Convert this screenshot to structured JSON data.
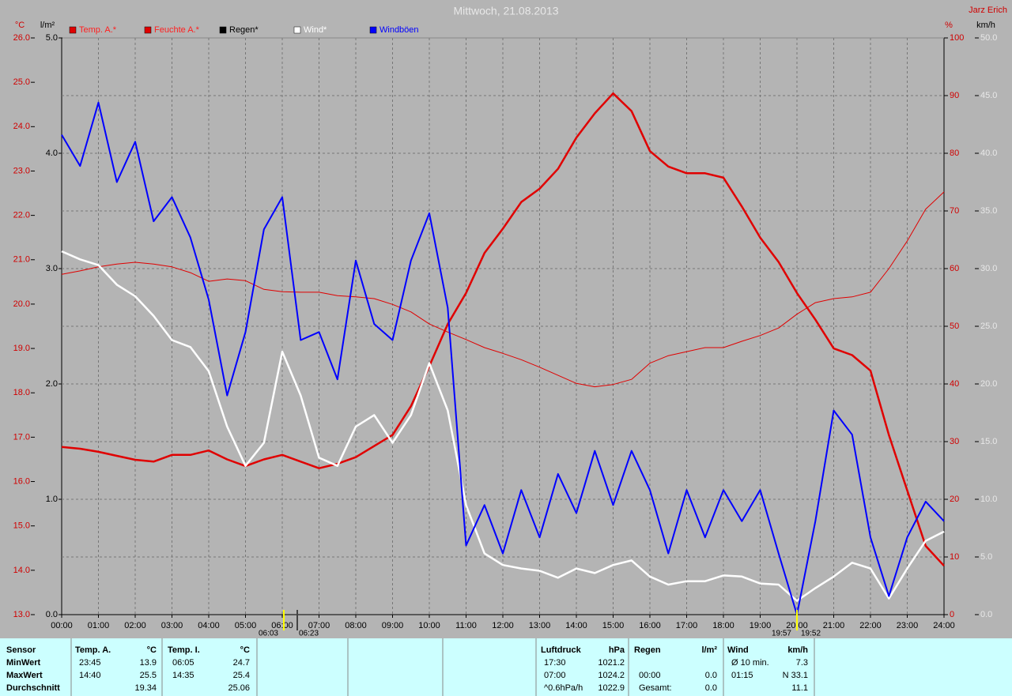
{
  "chart_data": {
    "type": "line",
    "title": "Mittwoch, 21.08.2013",
    "author": "Jarz Erich",
    "y_label": "°C",
    "y3_label": "l/m²",
    "y2_label": "%",
    "y4_label": "km/h",
    "grid": true,
    "xlim": [
      0,
      24
    ],
    "xticks": [
      {
        "value": 0,
        "label": "00:00"
      },
      {
        "value": 1,
        "label": "01:00"
      },
      {
        "value": 2,
        "label": "02:00"
      },
      {
        "value": 3,
        "label": "03:00"
      },
      {
        "value": 4,
        "label": "04:00"
      },
      {
        "value": 5,
        "label": "05:00"
      },
      {
        "value": 6,
        "label": "06:00"
      },
      {
        "value": 7,
        "label": "07:00"
      },
      {
        "value": 8,
        "label": "08:00"
      },
      {
        "value": 9,
        "label": "09:00"
      },
      {
        "value": 10,
        "label": "10:00"
      },
      {
        "value": 11,
        "label": "11:00"
      },
      {
        "value": 12,
        "label": "12:00"
      },
      {
        "value": 13,
        "label": "13:00"
      },
      {
        "value": 14,
        "label": "14:00"
      },
      {
        "value": 15,
        "label": "15:00"
      },
      {
        "value": 16,
        "label": "16:00"
      },
      {
        "value": 17,
        "label": "17:00"
      },
      {
        "value": 18,
        "label": "18:00"
      },
      {
        "value": 19,
        "label": "19:00"
      },
      {
        "value": 20,
        "label": "20:00"
      },
      {
        "value": 21,
        "label": "21:00"
      },
      {
        "value": 22,
        "label": "22:00"
      },
      {
        "value": 23,
        "label": "23:00"
      },
      {
        "value": 24,
        "label": "24:00"
      }
    ],
    "ylim": [
      13,
      26
    ],
    "yticks": [
      {
        "value": 13,
        "label": "13.0"
      },
      {
        "value": 14,
        "label": "14.0"
      },
      {
        "value": 15,
        "label": "15.0"
      },
      {
        "value": 16,
        "label": "16.0"
      },
      {
        "value": 17,
        "label": "17.0"
      },
      {
        "value": 18,
        "label": "18.0"
      },
      {
        "value": 19,
        "label": "19.0"
      },
      {
        "value": 20,
        "label": "20.0"
      },
      {
        "value": 21,
        "label": "21.0"
      },
      {
        "value": 22,
        "label": "22.0"
      },
      {
        "value": 23,
        "label": "23.0"
      },
      {
        "value": 24,
        "label": "24.0"
      },
      {
        "value": 25,
        "label": "25.0"
      },
      {
        "value": 26,
        "label": "26.0"
      }
    ],
    "y3lim": [
      0,
      5
    ],
    "y3ticks": [
      {
        "value": 0,
        "label": "0.0"
      },
      {
        "value": 1,
        "label": "1.0"
      },
      {
        "value": 2,
        "label": "2.0"
      },
      {
        "value": 3,
        "label": "3.0"
      },
      {
        "value": 4,
        "label": "4.0"
      },
      {
        "value": 5,
        "label": "5.0"
      }
    ],
    "y2lim": [
      0,
      100
    ],
    "y2ticks": [
      0,
      10,
      20,
      30,
      40,
      50,
      60,
      70,
      80,
      90,
      100
    ],
    "y4lim": [
      0,
      50
    ],
    "y4ticks": [
      {
        "value": 0,
        "label": "0.0"
      },
      {
        "value": 5,
        "label": "5.0"
      },
      {
        "value": 10,
        "label": "10.0"
      },
      {
        "value": 15,
        "label": "15.0"
      },
      {
        "value": 20,
        "label": "20.0"
      },
      {
        "value": 25,
        "label": "25.0"
      },
      {
        "value": 30,
        "label": "30.0"
      },
      {
        "value": 35,
        "label": "35.0"
      },
      {
        "value": 40,
        "label": "40.0"
      },
      {
        "value": 45,
        "label": "45.0"
      },
      {
        "value": 50,
        "label": "50.0"
      }
    ],
    "x": [
      0,
      0.5,
      1,
      1.5,
      2,
      2.5,
      3,
      3.5,
      4,
      4.5,
      5,
      5.5,
      6,
      6.5,
      7,
      7.5,
      8,
      8.5,
      9,
      9.5,
      10,
      10.5,
      11,
      11.5,
      12,
      12.5,
      13,
      13.5,
      14,
      14.5,
      15,
      15.5,
      16,
      16.5,
      17,
      17.5,
      18,
      18.5,
      19,
      19.5,
      20,
      20.5,
      21,
      21.5,
      22,
      22.5,
      23,
      23.5,
      24
    ],
    "series": [
      {
        "name": "Temp. A.*",
        "color": "#e00000",
        "axis": "y",
        "width": 2.5,
        "values": [
          16.78,
          16.74,
          16.67,
          16.58,
          16.49,
          16.45,
          16.6,
          16.6,
          16.7,
          16.5,
          16.35,
          16.5,
          16.6,
          16.45,
          16.3,
          16.4,
          16.55,
          16.8,
          17.05,
          17.7,
          18.6,
          19.55,
          20.25,
          21.15,
          21.7,
          22.3,
          22.6,
          23.05,
          23.75,
          24.3,
          24.75,
          24.35,
          23.45,
          23.1,
          22.95,
          22.95,
          22.85,
          22.2,
          21.5,
          20.95,
          20.25,
          19.65,
          19.0,
          18.85,
          18.5,
          17.05,
          15.8,
          14.55,
          14.1
        ]
      },
      {
        "name": "Feuchte A.*",
        "color": "#e00000",
        "axis": "y2",
        "width": 1,
        "values": [
          59.0,
          59.6,
          60.3,
          60.8,
          61.1,
          60.8,
          60.3,
          59.3,
          57.8,
          58.2,
          57.9,
          56.4,
          56.0,
          55.9,
          55.9,
          55.3,
          55.1,
          54.8,
          53.8,
          52.5,
          50.4,
          49.0,
          47.7,
          46.3,
          45.3,
          44.2,
          42.9,
          41.5,
          40.1,
          39.5,
          39.9,
          40.8,
          43.6,
          44.9,
          45.6,
          46.3,
          46.3,
          47.4,
          48.4,
          49.7,
          52.1,
          54.1,
          54.8,
          55.1,
          55.9,
          60.0,
          64.8,
          70.3,
          73.3
        ]
      },
      {
        "name": "Regen*",
        "color": "#000000",
        "axis": "y3",
        "width": 1,
        "values": [
          0,
          0,
          0,
          0,
          0,
          0,
          0,
          0,
          0,
          0,
          0,
          0,
          0,
          0,
          0,
          0,
          0,
          0,
          0,
          0,
          0,
          0,
          0,
          0,
          0,
          0,
          0,
          0,
          0,
          0,
          0,
          0,
          0,
          0,
          0,
          0,
          0,
          0,
          0,
          0,
          0,
          0,
          0,
          0,
          0,
          0,
          0,
          0,
          0
        ]
      },
      {
        "name": "Wind*",
        "color": "#ffffff",
        "axis": "y4",
        "width": 2.5,
        "values": [
          31.5,
          30.8,
          30.3,
          28.6,
          27.6,
          25.9,
          23.8,
          23.2,
          21.1,
          16.3,
          12.9,
          14.9,
          22.8,
          19.0,
          13.6,
          12.9,
          16.3,
          17.3,
          14.9,
          17.3,
          21.8,
          17.7,
          9.5,
          5.3,
          4.3,
          4.0,
          3.8,
          3.2,
          4.0,
          3.6,
          4.3,
          4.7,
          3.3,
          2.6,
          2.9,
          2.9,
          3.4,
          3.3,
          2.7,
          2.6,
          1.2,
          2.3,
          3.3,
          4.5,
          4.0,
          1.4,
          4.0,
          6.4,
          7.2
        ]
      },
      {
        "name": "Windböen",
        "color": "#0000ff",
        "axis": "y4",
        "width": 2,
        "values": [
          41.6,
          38.9,
          44.4,
          37.5,
          41.0,
          34.1,
          36.2,
          32.7,
          27.3,
          19.0,
          24.5,
          33.4,
          36.2,
          23.8,
          24.5,
          20.4,
          30.7,
          25.2,
          23.8,
          30.7,
          34.8,
          26.6,
          6.0,
          9.5,
          5.3,
          10.8,
          6.7,
          12.2,
          8.8,
          14.2,
          9.5,
          14.2,
          10.8,
          5.3,
          10.8,
          6.7,
          10.8,
          8.1,
          10.8,
          5.3,
          0,
          8.1,
          17.7,
          15.6,
          6.7,
          1.6,
          6.7,
          9.8,
          8.1
        ]
      }
    ],
    "annotations": [
      {
        "label": "06:03"
      },
      {
        "label": "06:23"
      },
      {
        "label": "19:57"
      },
      {
        "label": "19:52"
      }
    ]
  },
  "table": {
    "row_labels": [
      "Sensor",
      "MinWert",
      "MaxWert",
      "Durchschnitt"
    ],
    "blocks": [
      {
        "header": [
          "Temp. A.",
          "°C"
        ],
        "rows": [
          [
            "23:45",
            "13.9"
          ],
          [
            "14:40",
            "25.5"
          ],
          [
            null,
            "19.34"
          ]
        ]
      },
      {
        "header": [
          "Temp. I.",
          "°C"
        ],
        "rows": [
          [
            "06:05",
            "24.7"
          ],
          [
            "14:35",
            "25.4"
          ],
          [
            null,
            "25.06"
          ]
        ]
      },
      {
        "header": [
          "Luftdruck",
          "hPa"
        ],
        "rows": [
          [
            "17:30",
            "1021.2"
          ],
          [
            "07:00",
            "1024.2"
          ],
          [
            "^0.6hPa/h",
            "1022.9"
          ]
        ]
      },
      {
        "header": [
          "Regen",
          "l/m²"
        ],
        "rows": [
          [
            null,
            null
          ],
          [
            "00:00",
            "0.0"
          ],
          [
            "Gesamt:",
            "0.0"
          ]
        ]
      },
      {
        "header": [
          "Wind",
          "km/h"
        ],
        "rows": [
          [
            "Ø 10 min.",
            "7.3"
          ],
          [
            "01:15",
            "N 33.1"
          ],
          [
            null,
            "11.1"
          ]
        ]
      }
    ]
  }
}
